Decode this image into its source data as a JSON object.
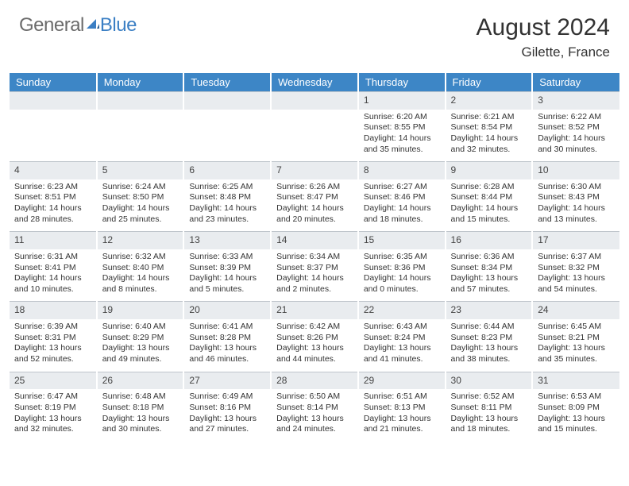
{
  "brand": {
    "general": "General",
    "blue": "Blue"
  },
  "title": {
    "main": "August 2024",
    "sub": "Gilette, France"
  },
  "colors": {
    "header_bg": "#3d86c6",
    "header_text": "#ffffff",
    "daynum_bg": "#e9ecef",
    "daynum_border": "#bfc5cb",
    "body_text": "#333333",
    "logo_gray": "#6b6b6b",
    "logo_blue": "#3b7fc4"
  },
  "weekdays": [
    "Sunday",
    "Monday",
    "Tuesday",
    "Wednesday",
    "Thursday",
    "Friday",
    "Saturday"
  ],
  "first_weekday_index": 4,
  "days": [
    {
      "n": 1,
      "sunrise": "6:20 AM",
      "sunset": "8:55 PM",
      "dl": "14 hours and 35 minutes."
    },
    {
      "n": 2,
      "sunrise": "6:21 AM",
      "sunset": "8:54 PM",
      "dl": "14 hours and 32 minutes."
    },
    {
      "n": 3,
      "sunrise": "6:22 AM",
      "sunset": "8:52 PM",
      "dl": "14 hours and 30 minutes."
    },
    {
      "n": 4,
      "sunrise": "6:23 AM",
      "sunset": "8:51 PM",
      "dl": "14 hours and 28 minutes."
    },
    {
      "n": 5,
      "sunrise": "6:24 AM",
      "sunset": "8:50 PM",
      "dl": "14 hours and 25 minutes."
    },
    {
      "n": 6,
      "sunrise": "6:25 AM",
      "sunset": "8:48 PM",
      "dl": "14 hours and 23 minutes."
    },
    {
      "n": 7,
      "sunrise": "6:26 AM",
      "sunset": "8:47 PM",
      "dl": "14 hours and 20 minutes."
    },
    {
      "n": 8,
      "sunrise": "6:27 AM",
      "sunset": "8:46 PM",
      "dl": "14 hours and 18 minutes."
    },
    {
      "n": 9,
      "sunrise": "6:28 AM",
      "sunset": "8:44 PM",
      "dl": "14 hours and 15 minutes."
    },
    {
      "n": 10,
      "sunrise": "6:30 AM",
      "sunset": "8:43 PM",
      "dl": "14 hours and 13 minutes."
    },
    {
      "n": 11,
      "sunrise": "6:31 AM",
      "sunset": "8:41 PM",
      "dl": "14 hours and 10 minutes."
    },
    {
      "n": 12,
      "sunrise": "6:32 AM",
      "sunset": "8:40 PM",
      "dl": "14 hours and 8 minutes."
    },
    {
      "n": 13,
      "sunrise": "6:33 AM",
      "sunset": "8:39 PM",
      "dl": "14 hours and 5 minutes."
    },
    {
      "n": 14,
      "sunrise": "6:34 AM",
      "sunset": "8:37 PM",
      "dl": "14 hours and 2 minutes."
    },
    {
      "n": 15,
      "sunrise": "6:35 AM",
      "sunset": "8:36 PM",
      "dl": "14 hours and 0 minutes."
    },
    {
      "n": 16,
      "sunrise": "6:36 AM",
      "sunset": "8:34 PM",
      "dl": "13 hours and 57 minutes."
    },
    {
      "n": 17,
      "sunrise": "6:37 AM",
      "sunset": "8:32 PM",
      "dl": "13 hours and 54 minutes."
    },
    {
      "n": 18,
      "sunrise": "6:39 AM",
      "sunset": "8:31 PM",
      "dl": "13 hours and 52 minutes."
    },
    {
      "n": 19,
      "sunrise": "6:40 AM",
      "sunset": "8:29 PM",
      "dl": "13 hours and 49 minutes."
    },
    {
      "n": 20,
      "sunrise": "6:41 AM",
      "sunset": "8:28 PM",
      "dl": "13 hours and 46 minutes."
    },
    {
      "n": 21,
      "sunrise": "6:42 AM",
      "sunset": "8:26 PM",
      "dl": "13 hours and 44 minutes."
    },
    {
      "n": 22,
      "sunrise": "6:43 AM",
      "sunset": "8:24 PM",
      "dl": "13 hours and 41 minutes."
    },
    {
      "n": 23,
      "sunrise": "6:44 AM",
      "sunset": "8:23 PM",
      "dl": "13 hours and 38 minutes."
    },
    {
      "n": 24,
      "sunrise": "6:45 AM",
      "sunset": "8:21 PM",
      "dl": "13 hours and 35 minutes."
    },
    {
      "n": 25,
      "sunrise": "6:47 AM",
      "sunset": "8:19 PM",
      "dl": "13 hours and 32 minutes."
    },
    {
      "n": 26,
      "sunrise": "6:48 AM",
      "sunset": "8:18 PM",
      "dl": "13 hours and 30 minutes."
    },
    {
      "n": 27,
      "sunrise": "6:49 AM",
      "sunset": "8:16 PM",
      "dl": "13 hours and 27 minutes."
    },
    {
      "n": 28,
      "sunrise": "6:50 AM",
      "sunset": "8:14 PM",
      "dl": "13 hours and 24 minutes."
    },
    {
      "n": 29,
      "sunrise": "6:51 AM",
      "sunset": "8:13 PM",
      "dl": "13 hours and 21 minutes."
    },
    {
      "n": 30,
      "sunrise": "6:52 AM",
      "sunset": "8:11 PM",
      "dl": "13 hours and 18 minutes."
    },
    {
      "n": 31,
      "sunrise": "6:53 AM",
      "sunset": "8:09 PM",
      "dl": "13 hours and 15 minutes."
    }
  ],
  "labels": {
    "sunrise": "Sunrise:",
    "sunset": "Sunset:",
    "daylight": "Daylight:"
  }
}
